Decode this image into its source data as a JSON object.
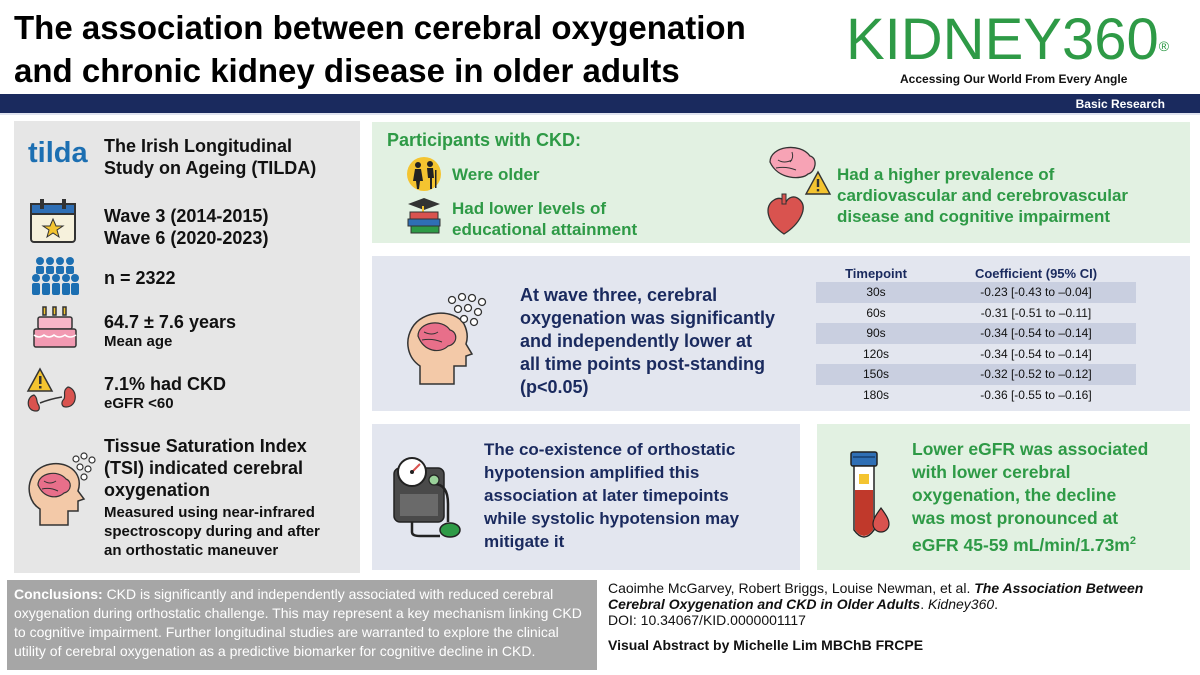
{
  "title": {
    "line1": "The association between cerebral oxygenation",
    "line2": "and chronic kidney disease in older adults"
  },
  "journal": {
    "name": "KIDNEY360",
    "reg": "®",
    "tagline": "Accessing Our World From Every Angle",
    "category": "Basic Research"
  },
  "colors": {
    "navy": "#1a2a5e",
    "green": "#2e9a46",
    "tilda_blue": "#1c6fb2"
  },
  "left": {
    "tilda_logo": "tilda",
    "study": [
      "The Irish Longitudinal",
      "Study on Ageing (TILDA)"
    ],
    "waves": [
      "Wave 3 (2014-2015)",
      "Wave 6 (2020-2023)"
    ],
    "n": "n = 2322",
    "age": "64.7 ± 7.6 years",
    "age_label": "Mean age",
    "ckd": "7.1% had CKD",
    "egfr": "eGFR <60",
    "tsi": [
      "Tissue Saturation Index",
      "(TSI) indicated cerebral",
      "oxygenation"
    ],
    "tsi_detail": [
      "Measured using near-infrared",
      "spectroscopy during and after",
      "an orthostatic maneuver"
    ]
  },
  "ckd_panel": {
    "title": "Participants with CKD:",
    "older": "Were older",
    "education": [
      "Had lower levels of",
      "educational attainment"
    ],
    "prevalence": [
      "Had a higher prevalence of",
      "cardiovascular and cerebrovascular",
      "disease and cognitive impairment"
    ]
  },
  "wave3": {
    "text": [
      "At wave three, cerebral",
      "oxygenation was significantly",
      "and independently lower at",
      "all time points post-standing",
      "(p<0.05)"
    ],
    "table": {
      "col1": "Timepoint",
      "col2": "Coefficient (95% CI)",
      "rows": [
        {
          "t": "30s",
          "c": "-0.23 [-0.43 to –0.04]"
        },
        {
          "t": "60s",
          "c": "-0.31 [-0.51 to –0.11]"
        },
        {
          "t": "90s",
          "c": "-0.34 [-0.54 to –0.14]"
        },
        {
          "t": "120s",
          "c": "-0.34 [-0.54 to –0.14]"
        },
        {
          "t": "150s",
          "c": "-0.32 [-0.52 to –0.12]"
        },
        {
          "t": "180s",
          "c": "-0.36 [-0.55 to –0.16]"
        }
      ]
    }
  },
  "orthostatic": {
    "text": [
      "The co-existence of orthostatic",
      "hypotension amplified this",
      "association at later timepoints",
      "while systolic hypotension may",
      "mitigate it"
    ]
  },
  "egfr_panel": {
    "text": [
      "Lower eGFR was associated",
      "with lower cerebral",
      "oxygenation, the decline",
      "was most pronounced at"
    ],
    "last_line": "eGFR 45-59 mL/min/1.73m",
    "sup": "2"
  },
  "conclusions": {
    "label": "Conclusions:",
    "text": "CKD is significantly and independently associated with reduced cerebral oxygenation during orthostatic challenge. This may represent a key mechanism linking CKD to cognitive impairment. Further longitudinal studies are warranted to explore the clinical utility of cerebral oxygenation as a predictive biomarker for cognitive decline in CKD."
  },
  "citation": {
    "authors": "Caoimhe McGarvey, Robert Briggs, Louise Newman, et al.",
    "title": "The Association Between Cerebral Oxygenation and CKD in Older Adults",
    "journal": "Kidney360",
    "doi": "DOI: 10.34067/KID.0000001117"
  },
  "credit": "Visual Abstract by Michelle Lim MBChB FRCPE"
}
